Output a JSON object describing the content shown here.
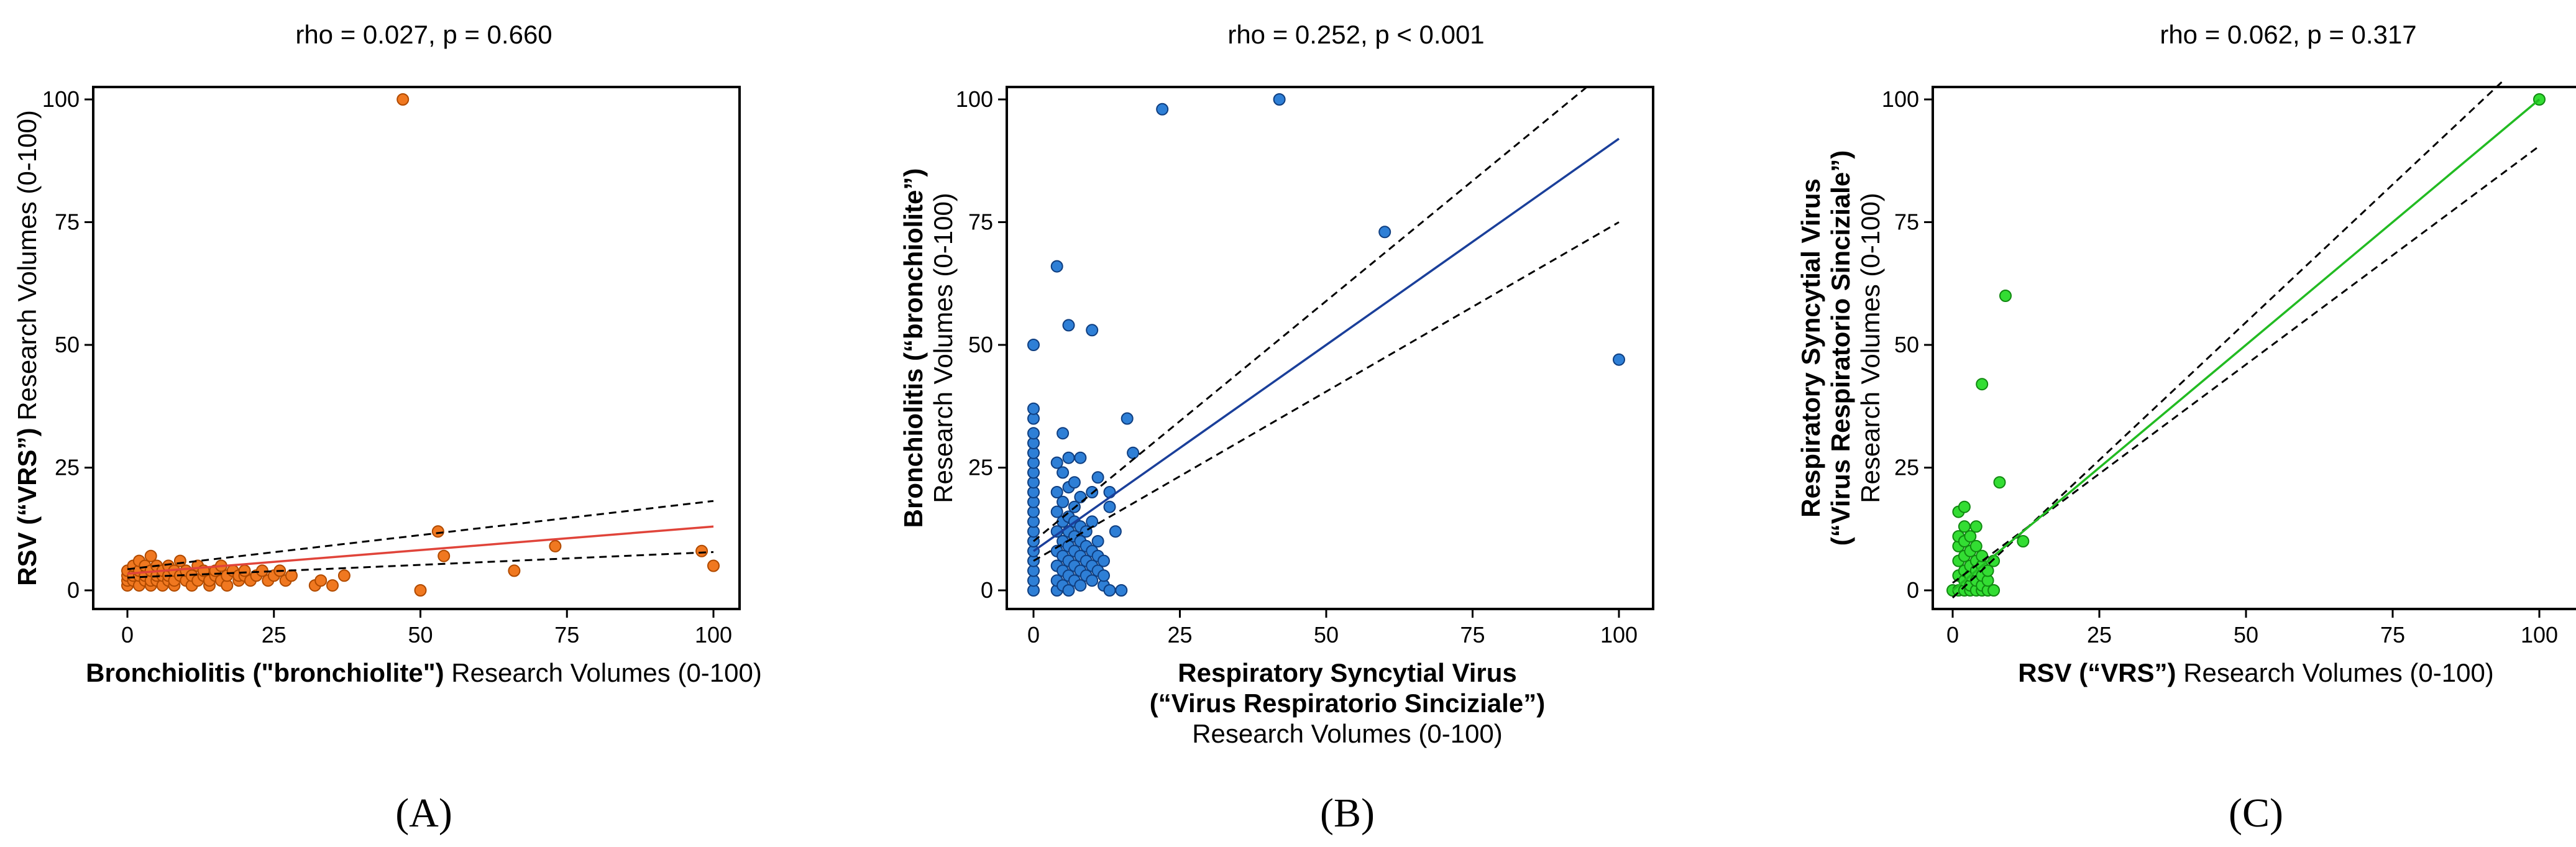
{
  "chart_data": [
    {
      "id": "A",
      "type": "scatter",
      "panel_label": "(A)",
      "title": "rho = 0.027, p = 0.660",
      "xlabel_bold": "Bronchiolitis (\"bronchiolite\")",
      "xlabel_normal": " Research Volumes (0-100)",
      "ylabel_bold": "RSV (“VRS”)",
      "ylabel_normal": " Research Volumes (0-100)",
      "xlim": [
        0,
        100
      ],
      "ylim": [
        0,
        100
      ],
      "xticks": [
        0,
        25,
        50,
        75,
        100
      ],
      "yticks": [
        0,
        25,
        50,
        75,
        100
      ],
      "grid": false,
      "point_color": "#f07820",
      "point_edge": "#b04a00",
      "line_color": "#e0443a",
      "points": [
        [
          0,
          1
        ],
        [
          0,
          2
        ],
        [
          0,
          3
        ],
        [
          0,
          4
        ],
        [
          1,
          2
        ],
        [
          1,
          3
        ],
        [
          1,
          5
        ],
        [
          2,
          1
        ],
        [
          2,
          3
        ],
        [
          2,
          4
        ],
        [
          2,
          6
        ],
        [
          3,
          2
        ],
        [
          3,
          3
        ],
        [
          3,
          5
        ],
        [
          4,
          1
        ],
        [
          4,
          2
        ],
        [
          4,
          4
        ],
        [
          4,
          7
        ],
        [
          5,
          2
        ],
        [
          5,
          3
        ],
        [
          5,
          5
        ],
        [
          6,
          1
        ],
        [
          6,
          3
        ],
        [
          6,
          4
        ],
        [
          7,
          2
        ],
        [
          7,
          3
        ],
        [
          7,
          5
        ],
        [
          8,
          1
        ],
        [
          8,
          2
        ],
        [
          8,
          4
        ],
        [
          9,
          3
        ],
        [
          9,
          6
        ],
        [
          10,
          2
        ],
        [
          10,
          4
        ],
        [
          11,
          1
        ],
        [
          11,
          3
        ],
        [
          12,
          2
        ],
        [
          12,
          5
        ],
        [
          13,
          3
        ],
        [
          13,
          4
        ],
        [
          14,
          1
        ],
        [
          14,
          2
        ],
        [
          15,
          3
        ],
        [
          15,
          4
        ],
        [
          16,
          2
        ],
        [
          16,
          5
        ],
        [
          17,
          1
        ],
        [
          17,
          3
        ],
        [
          18,
          4
        ],
        [
          19,
          2
        ],
        [
          19,
          3
        ],
        [
          20,
          3
        ],
        [
          20,
          4
        ],
        [
          21,
          2
        ],
        [
          22,
          3
        ],
        [
          23,
          4
        ],
        [
          24,
          2
        ],
        [
          25,
          3
        ],
        [
          26,
          4
        ],
        [
          27,
          2
        ],
        [
          28,
          3
        ],
        [
          32,
          1
        ],
        [
          33,
          2
        ],
        [
          35,
          1
        ],
        [
          37,
          3
        ],
        [
          47,
          100
        ],
        [
          50,
          0
        ],
        [
          53,
          12
        ],
        [
          54,
          7
        ],
        [
          66,
          4
        ],
        [
          73,
          9
        ],
        [
          98,
          8
        ],
        [
          100,
          5
        ]
      ],
      "regression": {
        "x": [
          0,
          100
        ],
        "y": [
          3.4,
          13
        ]
      },
      "ci_upper": {
        "x": [
          0,
          100
        ],
        "y": [
          4.3,
          18.2
        ]
      },
      "ci_lower": {
        "x": [
          0,
          100
        ],
        "y": [
          2.6,
          7.8
        ]
      }
    },
    {
      "id": "B",
      "type": "scatter",
      "panel_label": "(B)",
      "title": "rho = 0.252, p < 0.001",
      "xlabel_line1": "Respiratory Syncytial Virus",
      "xlabel_line2": "(“Virus Respiratorio Sinciziale”)",
      "xlabel_line3": "Research Volumes (0-100)",
      "ylabel_bold": "Bronchiolitis (“bronchiolite”)",
      "ylabel_normal": "Research Volumes (0-100)",
      "xlim": [
        0,
        100
      ],
      "ylim": [
        0,
        100
      ],
      "xticks": [
        0,
        25,
        50,
        75,
        100
      ],
      "yticks": [
        0,
        25,
        50,
        75,
        100
      ],
      "grid": false,
      "point_color": "#2e7fd6",
      "point_edge": "#0f3e80",
      "line_color": "#1a3f9a",
      "points": [
        [
          0,
          0
        ],
        [
          0,
          2
        ],
        [
          0,
          4
        ],
        [
          0,
          6
        ],
        [
          0,
          8
        ],
        [
          0,
          10
        ],
        [
          0,
          12
        ],
        [
          0,
          14
        ],
        [
          0,
          16
        ],
        [
          0,
          18
        ],
        [
          0,
          20
        ],
        [
          0,
          22
        ],
        [
          0,
          24
        ],
        [
          0,
          26
        ],
        [
          0,
          28
        ],
        [
          0,
          30
        ],
        [
          0,
          32
        ],
        [
          0,
          35
        ],
        [
          0,
          37
        ],
        [
          0,
          50
        ],
        [
          4,
          0
        ],
        [
          4,
          2
        ],
        [
          4,
          5
        ],
        [
          4,
          8
        ],
        [
          4,
          12
        ],
        [
          4,
          16
        ],
        [
          4,
          20
        ],
        [
          4,
          26
        ],
        [
          4,
          66
        ],
        [
          5,
          1
        ],
        [
          5,
          4
        ],
        [
          5,
          7
        ],
        [
          5,
          10
        ],
        [
          5,
          14
        ],
        [
          5,
          18
        ],
        [
          5,
          24
        ],
        [
          5,
          32
        ],
        [
          6,
          0
        ],
        [
          6,
          3
        ],
        [
          6,
          6
        ],
        [
          6,
          9
        ],
        [
          6,
          12
        ],
        [
          6,
          15
        ],
        [
          6,
          21
        ],
        [
          6,
          27
        ],
        [
          6,
          54
        ],
        [
          7,
          2
        ],
        [
          7,
          5
        ],
        [
          7,
          8
        ],
        [
          7,
          11
        ],
        [
          7,
          14
        ],
        [
          7,
          17
        ],
        [
          7,
          22
        ],
        [
          8,
          1
        ],
        [
          8,
          4
        ],
        [
          8,
          7
        ],
        [
          8,
          10
        ],
        [
          8,
          13
        ],
        [
          8,
          19
        ],
        [
          8,
          27
        ],
        [
          9,
          3
        ],
        [
          9,
          6
        ],
        [
          9,
          9
        ],
        [
          9,
          12
        ],
        [
          10,
          2
        ],
        [
          10,
          5
        ],
        [
          10,
          8
        ],
        [
          10,
          14
        ],
        [
          10,
          20
        ],
        [
          10,
          53
        ],
        [
          11,
          4
        ],
        [
          11,
          7
        ],
        [
          11,
          10
        ],
        [
          11,
          23
        ],
        [
          12,
          1
        ],
        [
          12,
          3
        ],
        [
          12,
          6
        ],
        [
          13,
          0
        ],
        [
          13,
          17
        ],
        [
          13,
          20
        ],
        [
          14,
          12
        ],
        [
          15,
          0
        ],
        [
          16,
          35
        ],
        [
          17,
          28
        ],
        [
          22,
          98
        ],
        [
          42,
          100
        ],
        [
          60,
          73
        ],
        [
          100,
          47
        ]
      ],
      "regression": {
        "x": [
          0,
          100
        ],
        "y": [
          8,
          92
        ]
      },
      "ci_upper": {
        "x": [
          0,
          95
        ],
        "y": [
          10,
          103
        ]
      },
      "ci_lower": {
        "x": [
          0,
          100
        ],
        "y": [
          6,
          75
        ]
      }
    },
    {
      "id": "C",
      "type": "scatter",
      "panel_label": "(C)",
      "title": "rho = 0.062, p = 0.317",
      "xlabel_bold": "RSV (“VRS”)",
      "xlabel_normal": " Research Volumes (0-100)",
      "ylabel_line1": "Respiratory Syncytial Virus",
      "ylabel_line2": "(“Virus Respiratorio Sinciziale”)",
      "ylabel_line3": "Research Volumes (0-100)",
      "xlim": [
        0,
        100
      ],
      "ylim": [
        0,
        100
      ],
      "xticks": [
        0,
        25,
        50,
        75,
        100
      ],
      "yticks": [
        0,
        25,
        50,
        75,
        100
      ],
      "grid": false,
      "point_color": "#33dd33",
      "point_edge": "#118811",
      "line_color": "#22bb22",
      "points": [
        [
          0,
          0
        ],
        [
          1,
          0
        ],
        [
          1,
          3
        ],
        [
          1,
          6
        ],
        [
          1,
          9
        ],
        [
          1,
          11
        ],
        [
          1,
          16
        ],
        [
          2,
          0
        ],
        [
          2,
          2
        ],
        [
          2,
          4
        ],
        [
          2,
          7
        ],
        [
          2,
          10
        ],
        [
          2,
          13
        ],
        [
          2,
          17
        ],
        [
          3,
          0
        ],
        [
          3,
          1
        ],
        [
          3,
          3
        ],
        [
          3,
          5
        ],
        [
          3,
          8
        ],
        [
          3,
          11
        ],
        [
          4,
          0
        ],
        [
          4,
          2
        ],
        [
          4,
          4
        ],
        [
          4,
          6
        ],
        [
          4,
          9
        ],
        [
          4,
          13
        ],
        [
          5,
          0
        ],
        [
          5,
          1
        ],
        [
          5,
          3
        ],
        [
          5,
          5
        ],
        [
          5,
          7
        ],
        [
          5,
          42
        ],
        [
          6,
          0
        ],
        [
          6,
          2
        ],
        [
          6,
          4
        ],
        [
          7,
          0
        ],
        [
          7,
          6
        ],
        [
          8,
          22
        ],
        [
          9,
          60
        ],
        [
          12,
          10
        ],
        [
          100,
          100
        ]
      ],
      "regression": {
        "x": [
          0,
          100
        ],
        "y": [
          0,
          100
        ]
      },
      "ci_upper": {
        "x": [
          0,
          94
        ],
        "y": [
          -1.5,
          104
        ]
      },
      "ci_lower": {
        "x": [
          0,
          100
        ],
        "y": [
          1.5,
          90.5
        ]
      }
    }
  ]
}
